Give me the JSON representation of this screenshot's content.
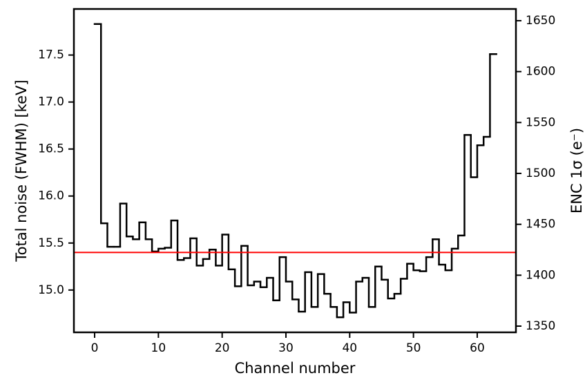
{
  "chart_data": {
    "type": "step",
    "x": [
      0,
      1,
      2,
      3,
      4,
      5,
      6,
      7,
      8,
      9,
      10,
      11,
      12,
      13,
      14,
      15,
      16,
      17,
      18,
      19,
      20,
      21,
      22,
      23,
      24,
      25,
      26,
      27,
      28,
      29,
      30,
      31,
      32,
      33,
      34,
      35,
      36,
      37,
      38,
      39,
      40,
      41,
      42,
      43,
      44,
      45,
      46,
      47,
      48,
      49,
      50,
      51,
      52,
      53,
      54,
      55,
      56,
      57,
      58,
      59,
      60,
      61,
      62
    ],
    "series": [
      {
        "color": "#000000",
        "values": [
          17.83,
          15.71,
          15.46,
          15.46,
          15.92,
          15.57,
          15.54,
          15.72,
          15.54,
          15.41,
          15.44,
          15.45,
          15.74,
          15.32,
          15.34,
          15.55,
          15.26,
          15.33,
          15.43,
          15.26,
          15.59,
          15.22,
          15.04,
          15.47,
          15.05,
          15.09,
          15.03,
          15.13,
          14.89,
          15.35,
          15.09,
          14.9,
          14.77,
          15.19,
          14.82,
          15.17,
          14.96,
          14.82,
          14.71,
          14.87,
          14.76,
          15.09,
          15.13,
          14.82,
          15.25,
          15.11,
          14.91,
          14.96,
          15.12,
          15.28,
          15.21,
          15.2,
          15.35,
          15.54,
          15.27,
          15.21,
          15.44,
          15.58,
          16.65,
          16.2,
          16.54,
          16.63,
          17.51
        ]
      }
    ],
    "hline": {
      "value": 15.4,
      "color": "#ff0000"
    },
    "xlabel": "Channel number",
    "ylabel": "Total noise (FWHM) [keV]",
    "y2label": "ENC 1σ (e⁻)",
    "xlim": [
      -3.25,
      66.07
    ],
    "xticks": [
      0,
      10,
      20,
      30,
      40,
      50,
      60
    ],
    "ylim": [
      14.55,
      17.99
    ],
    "yticks": [
      {
        "value": 15,
        "label": "15.0"
      },
      15.5,
      {
        "value": 16,
        "label": "16.0"
      },
      16.5,
      {
        "value": 17,
        "label": "17.0"
      },
      17.5
    ],
    "y2lim": [
      1343.9,
      1661.5
    ],
    "y2ticks": [
      1350,
      1400,
      1450,
      1500,
      1550,
      1600,
      1650
    ]
  }
}
